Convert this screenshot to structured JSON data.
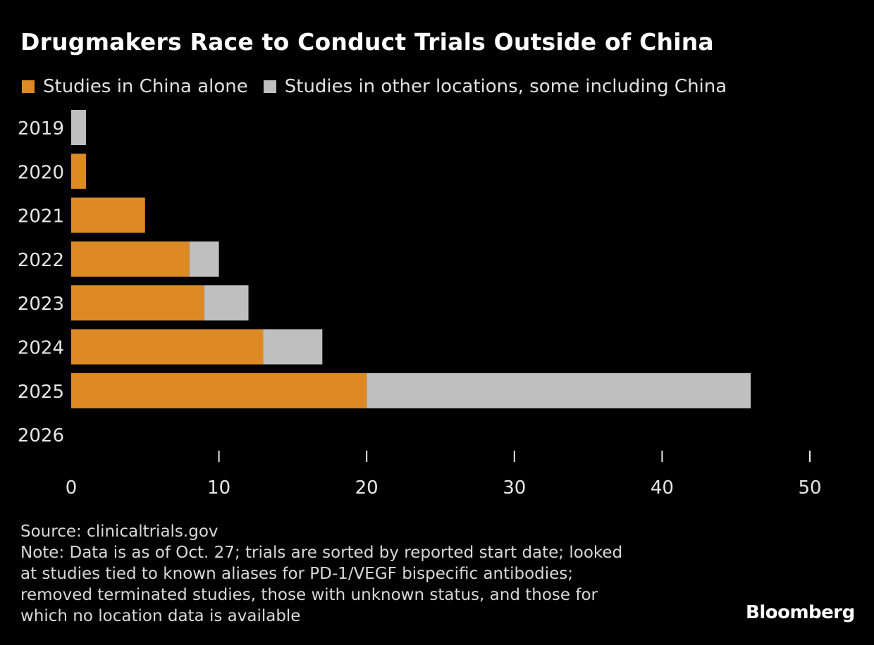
{
  "chart_data": {
    "type": "bar",
    "orientation": "horizontal",
    "stacked": true,
    "title": "Drugmakers Race to Conduct Trials Outside of China",
    "categories": [
      "2019",
      "2020",
      "2021",
      "2022",
      "2023",
      "2024",
      "2025",
      "2026"
    ],
    "series": [
      {
        "name": "Studies in China alone",
        "color": "#dd8a25",
        "values": [
          0,
          1,
          5,
          8,
          9,
          13,
          20,
          0
        ]
      },
      {
        "name": "Studies in other locations, some including China",
        "color": "#bfbfbf",
        "values": [
          1,
          0,
          0,
          2,
          3,
          4,
          26,
          0
        ]
      }
    ],
    "series_2026_note": "",
    "xlim": [
      0,
      50
    ],
    "xticks": [
      "0",
      "10",
      "20",
      "30",
      "40",
      "50"
    ],
    "grid": false,
    "legend": "top-left"
  },
  "source": "Source: clinicaltrials.gov",
  "note_lines": [
    "Note: Data is as of Oct. 27; trials are sorted by reported start date; looked",
    "at studies tied to known aliases for PD-1/VEGF bispecific antibodies;",
    "removed terminated studies, those with unknown status, and those for",
    "which no location data is available"
  ],
  "logo": "Bloomberg",
  "background": "#000000"
}
